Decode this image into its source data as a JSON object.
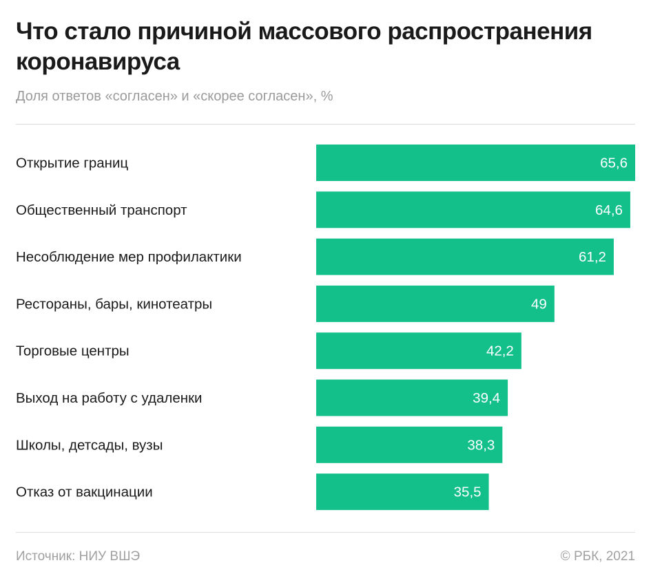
{
  "header": {
    "title": "Что стало причиной массового распространения коронавируса",
    "subtitle": "Доля ответов «согласен» и «скорее согласен», %"
  },
  "footer": {
    "source": "Источник: НИУ ВШЭ",
    "copyright": "© РБК, 2021"
  },
  "colors": {
    "bar": "#13c08a",
    "label": "#1a1a1a",
    "value_label": "#ffffff"
  },
  "chart_data": {
    "type": "bar",
    "orientation": "horizontal",
    "title": "Что стало причиной массового распространения коронавируса",
    "subtitle": "Доля ответов «согласен» и «скорее согласен», %",
    "categories": [
      "Открытие границ",
      "Общественный транспорт",
      "Несоблюдение мер профилактики",
      "Рестораны, бары, кинотеатры",
      "Торговые центры",
      "Выход на работу с удаленки",
      "Школы, детсады, вузы",
      "Отказ от вакцинации"
    ],
    "values": [
      65.6,
      64.6,
      61.2,
      49,
      42.2,
      39.4,
      38.3,
      35.5
    ],
    "value_labels": [
      "65,6",
      "64,6",
      "61,2",
      "49",
      "42,2",
      "39,4",
      "38,3",
      "35,5"
    ],
    "xlim": [
      0,
      65.6
    ],
    "grid": false,
    "legend": "none"
  }
}
